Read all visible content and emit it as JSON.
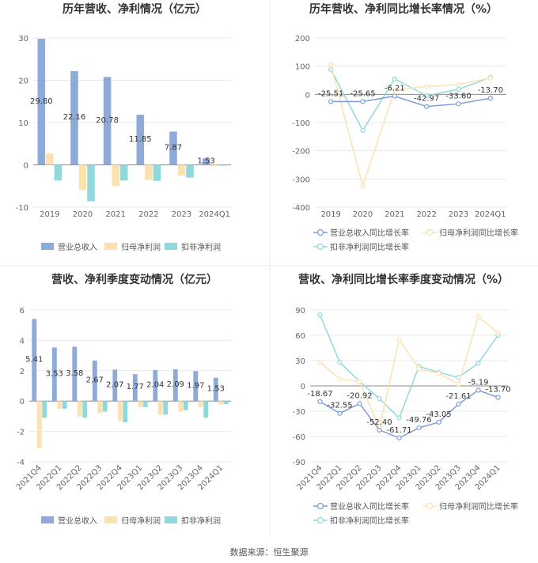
{
  "footer": {
    "source": "数据来源：恒生聚源"
  },
  "chart_data": [
    {
      "id": "annual-revenue-profit",
      "type": "bar",
      "title": "历年营收、净利情况（亿元）",
      "categories": [
        "2019",
        "2020",
        "2021",
        "2022",
        "2023",
        "2024Q1"
      ],
      "ylim": [
        -10,
        30
      ],
      "yticks": [
        -10,
        0,
        10,
        20,
        30
      ],
      "legend_position": "bottom",
      "series": [
        {
          "name": "营业总收入",
          "values": [
            29.8,
            22.16,
            20.78,
            11.85,
            7.87,
            1.53
          ],
          "color": "#8eaad8",
          "labels": [
            "29.80",
            "22.16",
            "20.78",
            "11.85",
            "7.87",
            "1.53"
          ]
        },
        {
          "name": "归母净利润",
          "values": [
            2.7,
            -6.0,
            -5.0,
            -3.5,
            -2.5,
            -0.3
          ],
          "color": "#fde2b0"
        },
        {
          "name": "扣非净利润",
          "values": [
            -3.7,
            -8.6,
            -3.7,
            -3.8,
            -3.0,
            -0.2
          ],
          "color": "#8fd9dd"
        }
      ]
    },
    {
      "id": "annual-growth",
      "type": "line",
      "title": "历年营收、净利同比增长率情况（%）",
      "categories": [
        "2019",
        "2020",
        "2021",
        "2022",
        "2023",
        "2024Q1"
      ],
      "ylim": [
        -400,
        200
      ],
      "yticks": [
        -400,
        -300,
        -200,
        -100,
        0,
        100,
        200
      ],
      "legend_position": "bottom",
      "series": [
        {
          "name": "营业总收入同比增长率",
          "values": [
            -25.51,
            -25.65,
            -6.21,
            -42.97,
            -33.6,
            -13.7
          ],
          "color": "#7f9cd6",
          "labels": [
            "-25.51",
            "-25.65",
            "-6.21",
            "-42.97",
            "-33.60",
            "-13.70"
          ]
        },
        {
          "name": "归母净利润同比增长率",
          "values": [
            105,
            -325,
            15,
            28,
            35,
            58
          ],
          "color": "#fde2b0"
        },
        {
          "name": "扣非净利润同比增长率",
          "values": [
            88,
            -128,
            55,
            -5,
            18,
            60
          ],
          "color": "#8fd9dd"
        }
      ]
    },
    {
      "id": "quarterly-revenue-profit",
      "type": "bar",
      "title": "营收、净利季度变动情况（亿元）",
      "categories": [
        "2021Q4",
        "2022Q1",
        "2022Q2",
        "2022Q3",
        "2022Q4",
        "2023Q1",
        "2023Q2",
        "2023Q3",
        "2023Q4",
        "2024Q1"
      ],
      "ylim": [
        -4,
        6
      ],
      "yticks": [
        -4,
        -2,
        0,
        2,
        4,
        6
      ],
      "legend_position": "bottom",
      "series": [
        {
          "name": "营业总收入",
          "values": [
            5.41,
            3.53,
            3.58,
            2.67,
            2.07,
            1.77,
            2.04,
            2.09,
            1.97,
            1.53
          ],
          "color": "#8eaad8",
          "labels": [
            "5.41",
            "3.53",
            "3.58",
            "2.67",
            "2.07",
            "1.77",
            "2.04",
            "2.09",
            "1.97",
            "1.53"
          ]
        },
        {
          "name": "归母净利润",
          "values": [
            -3.1,
            -0.5,
            -1.0,
            -0.8,
            -1.3,
            -0.4,
            -0.9,
            -0.7,
            -0.4,
            -0.2
          ],
          "color": "#fde2b0"
        },
        {
          "name": "扣非净利润",
          "values": [
            -1.1,
            -0.5,
            -1.1,
            -0.7,
            -1.4,
            -0.4,
            -0.9,
            -0.6,
            -1.1,
            -0.2
          ],
          "color": "#8fd9dd"
        }
      ]
    },
    {
      "id": "quarterly-growth",
      "type": "line",
      "title": "营收、净利同比增长率季度变动情况（%）",
      "categories": [
        "2021Q4",
        "2022Q1",
        "2022Q2",
        "2022Q3",
        "2022Q4",
        "2023Q1",
        "2023Q2",
        "2023Q3",
        "2023Q4",
        "2024Q1"
      ],
      "ylim": [
        -90,
        90
      ],
      "yticks": [
        -90,
        -60,
        -30,
        0,
        30,
        60,
        90
      ],
      "legend_position": "bottom",
      "series": [
        {
          "name": "营业总收入同比增长率",
          "values": [
            -18.67,
            -32.55,
            -20.92,
            -52.4,
            -61.71,
            -49.76,
            -43.05,
            -21.61,
            -5.19,
            -13.7
          ],
          "color": "#7f9cd6",
          "labels": [
            "-18.67",
            "-32.55",
            "-20.92",
            "-52.40",
            "-61.71",
            "-49.76",
            "-43.05",
            "-21.61",
            "-5.19",
            "-13.70"
          ]
        },
        {
          "name": "归母净利润同比增长率",
          "values": [
            28,
            8,
            5,
            -50,
            55,
            20,
            15,
            2,
            82,
            63
          ],
          "color": "#fde2b0"
        },
        {
          "name": "扣非净利润同比增长率",
          "values": [
            84,
            28,
            5,
            -15,
            -38,
            23,
            16,
            10,
            27,
            60
          ],
          "color": "#8fd9dd"
        }
      ]
    }
  ]
}
